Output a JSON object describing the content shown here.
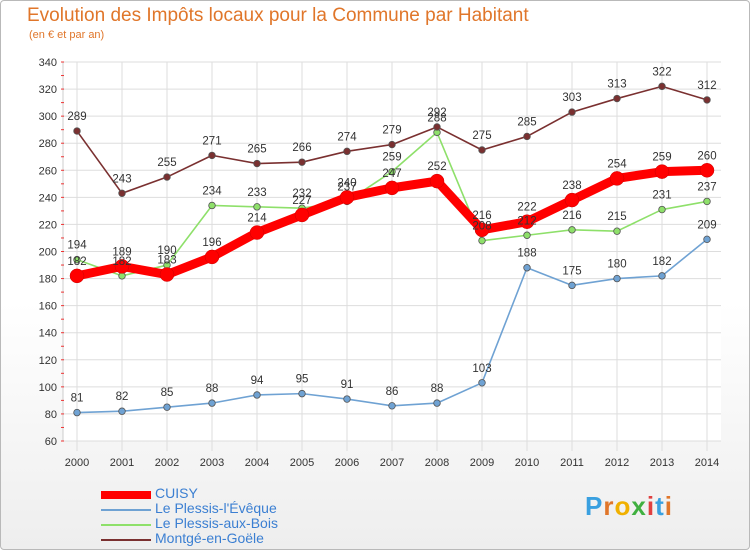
{
  "header": {
    "title": "Evolution des Impôts locaux pour la Commune par Habitant",
    "subtitle": "(en € et par an)"
  },
  "logo": {
    "text": "Proxiti"
  },
  "chart_data": {
    "type": "line",
    "x": [
      "2000",
      "2001",
      "2002",
      "2003",
      "2004",
      "2005",
      "2006",
      "2007",
      "2008",
      "2009",
      "2010",
      "2011",
      "2012",
      "2013",
      "2014"
    ],
    "ylim": [
      60,
      340
    ],
    "yticks": [
      60,
      80,
      100,
      120,
      140,
      160,
      180,
      200,
      220,
      240,
      260,
      280,
      300,
      320,
      340
    ],
    "grid": true,
    "legend_position": "bottom-left",
    "series": [
      {
        "name": "CUISY",
        "color": "#ff0000",
        "emphasis": true,
        "values": [
          182,
          189,
          183,
          196,
          214,
          227,
          240,
          247,
          252,
          216,
          222,
          238,
          254,
          259,
          260
        ]
      },
      {
        "name": "Le Plessis-l'Évêque",
        "color": "#6fa2d3",
        "values": [
          81,
          82,
          85,
          88,
          94,
          95,
          91,
          86,
          88,
          103,
          188,
          175,
          180,
          182,
          209
        ]
      },
      {
        "name": "Le Plessis-aux-Bois",
        "color": "#8ee06a",
        "values": [
          194,
          182,
          190,
          234,
          233,
          232,
          237,
          259,
          288,
          208,
          212,
          216,
          215,
          231,
          237
        ]
      },
      {
        "name": "Montgé-en-Goële",
        "color": "#7a3030",
        "values": [
          289,
          243,
          255,
          271,
          265,
          266,
          274,
          279,
          292,
          275,
          285,
          303,
          313,
          322,
          312
        ]
      }
    ]
  }
}
